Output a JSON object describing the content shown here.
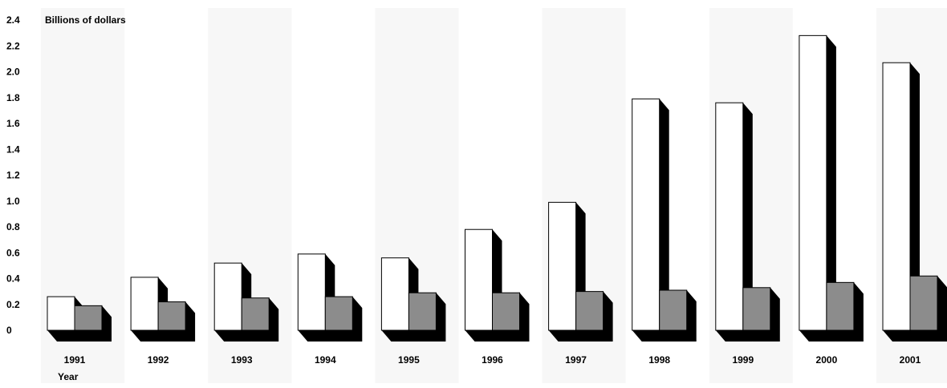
{
  "chart_data": {
    "type": "bar",
    "ylabel": "Billions of dollars",
    "xlabel": "Year",
    "categories": [
      "1991",
      "1992",
      "1993",
      "1994",
      "1995",
      "1996",
      "1997",
      "1998",
      "1999",
      "2000",
      "2001"
    ],
    "series": [
      {
        "values": [
          0.26,
          0.41,
          0.52,
          0.59,
          0.56,
          0.78,
          0.99,
          1.79,
          1.76,
          2.28,
          2.07
        ]
      },
      {
        "values": [
          0.19,
          0.22,
          0.25,
          0.26,
          0.29,
          0.29,
          0.3,
          0.31,
          0.33,
          0.37,
          0.42
        ]
      }
    ],
    "ylim": [
      0,
      2.4
    ],
    "yticks": [
      "0",
      "0.2",
      "0.4",
      "0.6",
      "0.8",
      "1.0",
      "1.2",
      "1.4",
      "1.6",
      "1.8",
      "2.0",
      "2.2",
      "2.4"
    ],
    "grid": false,
    "colors": {
      "series1": "#ffffff",
      "series2": "#8c8c8c",
      "shadow": "#000000",
      "band": "#f7f7f7"
    }
  }
}
